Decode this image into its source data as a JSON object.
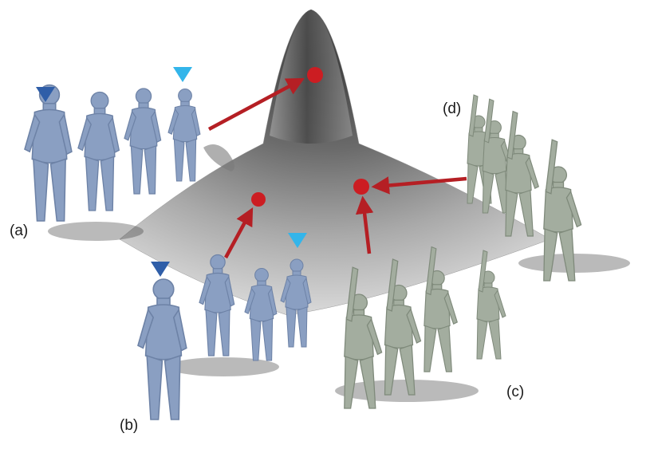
{
  "labels": {
    "a": "(a)",
    "b": "(b)",
    "c": "(c)",
    "d": "(d)"
  },
  "colors": {
    "blue_body": "#8a9fc2",
    "green_body": "#a3ad9f",
    "surface_dark": "#5a5a5a",
    "surface_light": "#b8b8b8",
    "arrow_red": "#b51f24",
    "point_red": "#cc1d22",
    "marker_dark_blue": "#2f5ea8",
    "marker_light_blue": "#33b5ea"
  }
}
